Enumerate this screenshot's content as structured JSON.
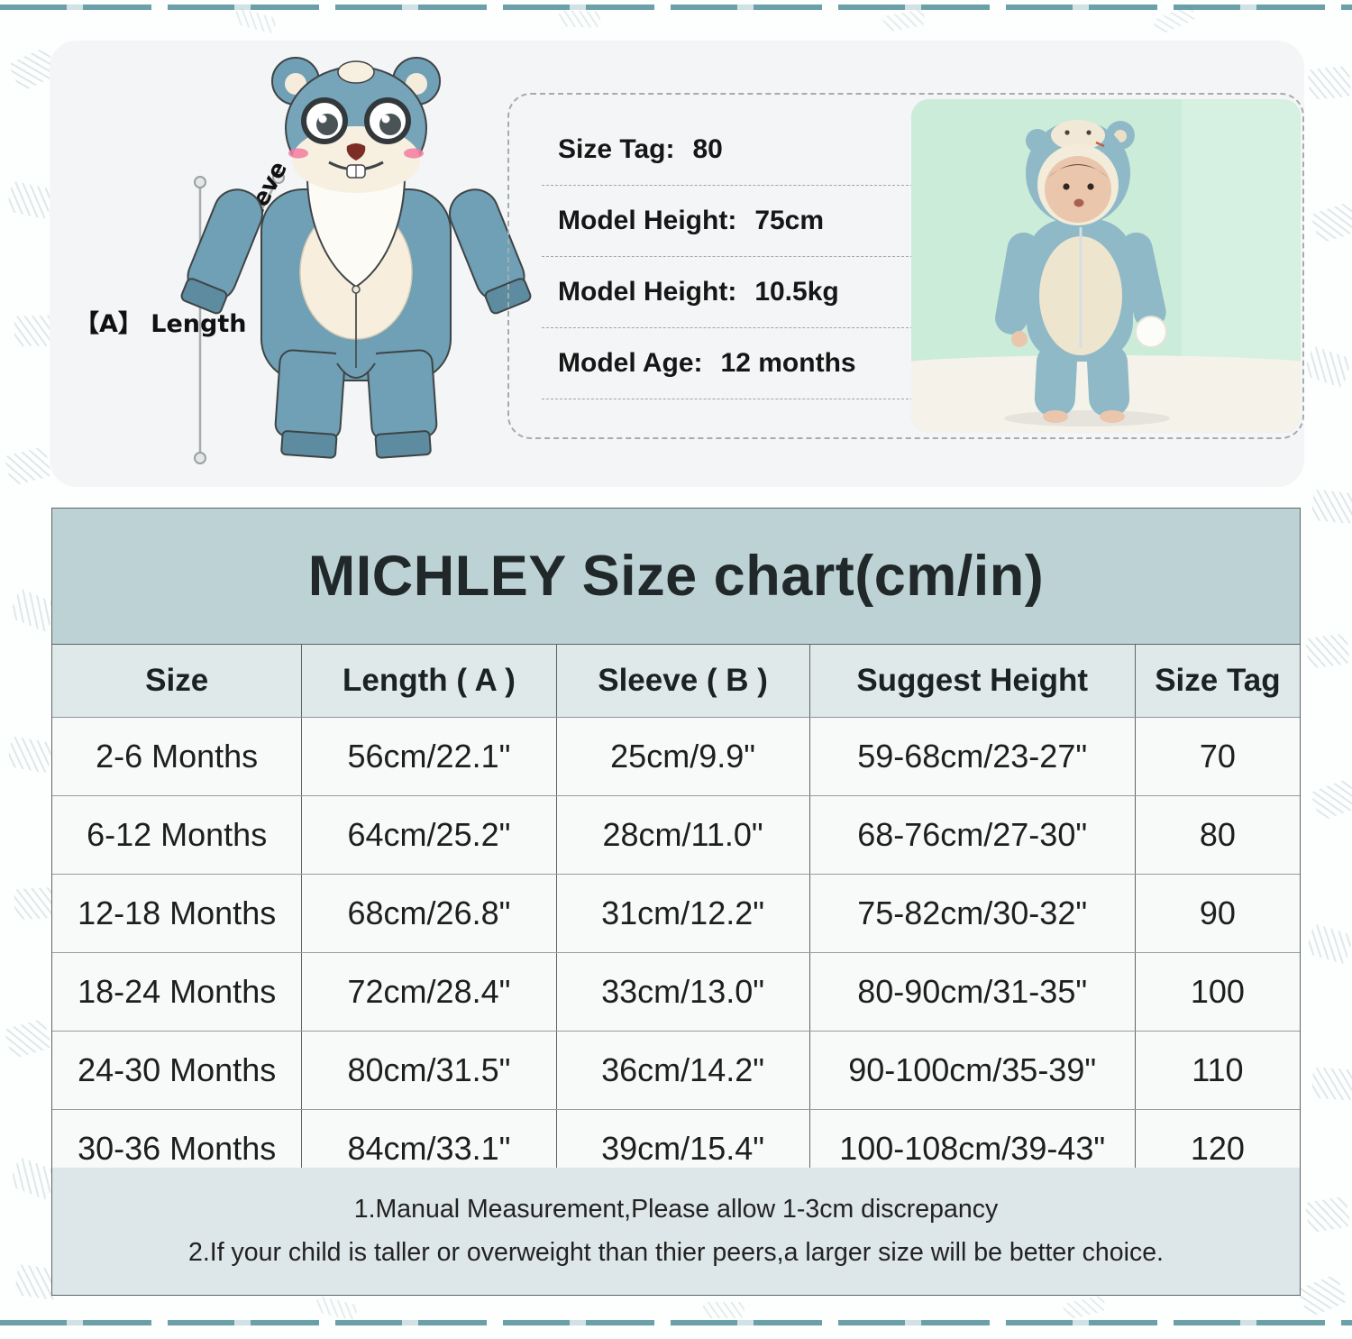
{
  "colors": {
    "accent_teal": "#51909a",
    "title_band": "#bdd2d5",
    "header_band": "#e0e9ea",
    "row_bg": "#f8f9f9",
    "note_band": "#dde6e8",
    "panel_bg": "#f3f5f6",
    "garment_blue": "#6fa0b5",
    "belly_cream": "#f7eede",
    "photo_wall_mint": "#cbecd9"
  },
  "measure_panel": {
    "length_label": "【A】 Length",
    "sleeve_label": "【B】 Sleeve"
  },
  "model_info": {
    "rows": [
      {
        "label": "Size Tag:",
        "value": "80"
      },
      {
        "label": "Model Height:",
        "value": "75cm"
      },
      {
        "label": "Model Height:",
        "value": "10.5kg"
      },
      {
        "label": "Model Age:",
        "value": "12 months"
      }
    ]
  },
  "chart_data": {
    "type": "table",
    "title": "MICHLEY Size chart(cm/in)",
    "columns": [
      "Size",
      "Length ( A )",
      "Sleeve ( B )",
      "Suggest Height",
      "Size Tag"
    ],
    "rows": [
      [
        "2-6 Months",
        "56cm/22.1\"",
        "25cm/9.9\"",
        "59-68cm/23-27\"",
        "70"
      ],
      [
        "6-12 Months",
        "64cm/25.2\"",
        "28cm/11.0\"",
        "68-76cm/27-30\"",
        "80"
      ],
      [
        "12-18 Months",
        "68cm/26.8\"",
        "31cm/12.2\"",
        "75-82cm/30-32\"",
        "90"
      ],
      [
        "18-24 Months",
        "72cm/28.4\"",
        "33cm/13.0\"",
        "80-90cm/31-35\"",
        "100"
      ],
      [
        "24-30 Months",
        "80cm/31.5\"",
        "36cm/14.2\"",
        "90-100cm/35-39\"",
        "110"
      ],
      [
        "30-36 Months",
        "84cm/33.1\"",
        "39cm/15.4\"",
        "100-108cm/39-43\"",
        "120"
      ]
    ],
    "notes": [
      "1.Manual Measurement,Please allow 1-3cm discrepancy",
      "2.If your child is taller or overweight than thier peers,a larger size will be better choice."
    ]
  }
}
